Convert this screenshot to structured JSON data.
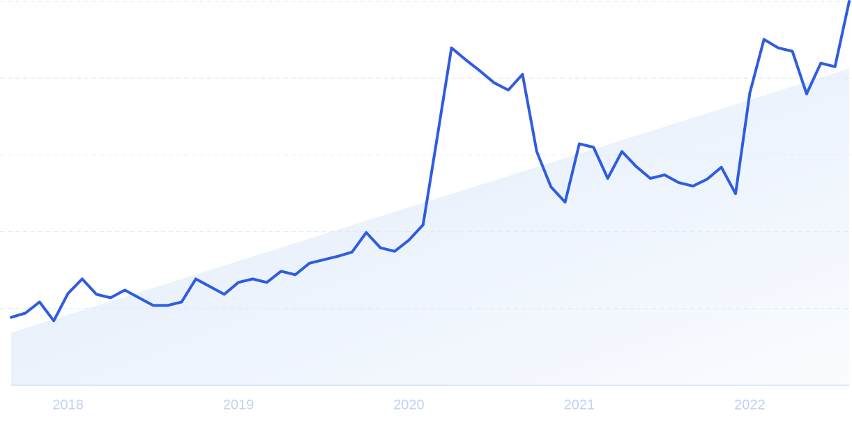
{
  "chart_data": {
    "type": "line",
    "categories": [
      null,
      null,
      null,
      null,
      "2018",
      null,
      null,
      null,
      null,
      null,
      null,
      null,
      null,
      null,
      null,
      null,
      "2019",
      null,
      null,
      null,
      null,
      null,
      null,
      null,
      null,
      null,
      null,
      null,
      "2020",
      null,
      null,
      null,
      null,
      null,
      null,
      null,
      null,
      null,
      null,
      null,
      "2021",
      null,
      null,
      null,
      null,
      null,
      null,
      null,
      null,
      null,
      null,
      null,
      "2022",
      null,
      null,
      null,
      null,
      null,
      null,
      null
    ],
    "series": [
      {
        "color": "#2f5ce0",
        "values": [
          17.7,
          18.8,
          21.7,
          16.8,
          23.9,
          27.7,
          23.7,
          22.8,
          24.8,
          22.8,
          20.8,
          20.8,
          21.7,
          27.7,
          25.7,
          23.7,
          26.8,
          27.7,
          26.8,
          29.7,
          28.8,
          31.8,
          32.7,
          33.6,
          34.7,
          39.8,
          35.8,
          34.9,
          37.8,
          41.8,
          64.7,
          87.9,
          84.8,
          81.9,
          78.8,
          76.9,
          81.0,
          60.9,
          51.7,
          47.7,
          62.9,
          62.0,
          53.9,
          60.9,
          57.0,
          53.9,
          54.8,
          52.8,
          51.9,
          53.7,
          56.8,
          49.9,
          76.1,
          90.1,
          87.9,
          87.0,
          75.9,
          83.9,
          83.0,
          100
        ]
      }
    ],
    "trend": [
      13.7,
      82.5
    ],
    "trend_color": "#dbe8fa",
    "ylim": [
      0,
      100
    ],
    "gridlines": [
      20,
      40,
      60,
      80,
      100
    ],
    "grid": true
  }
}
